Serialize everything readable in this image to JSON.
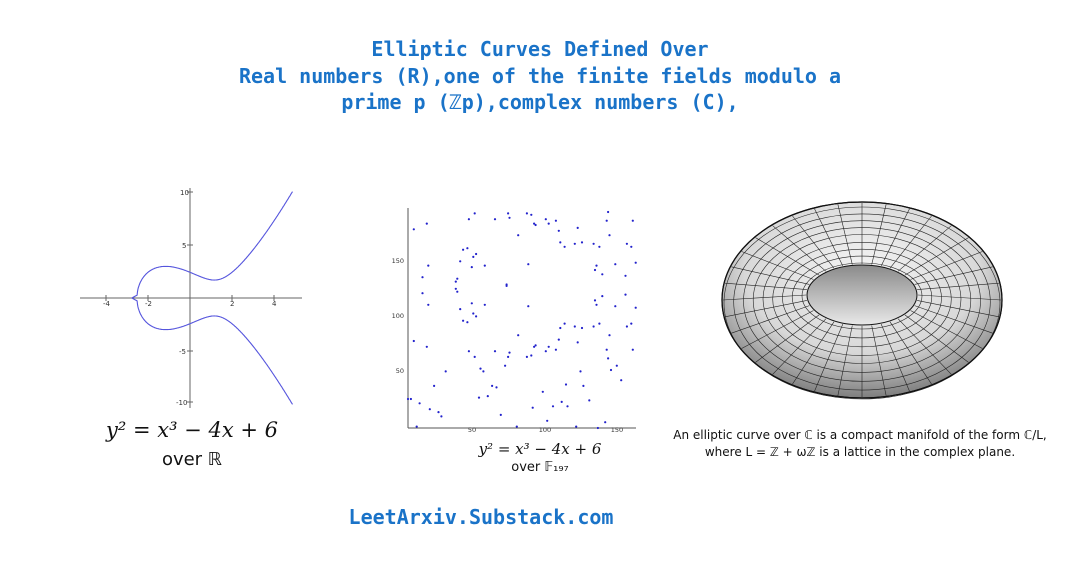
{
  "header": {
    "line1": "Elliptic Curves Defined Over",
    "line2": "Real numbers (R),one of the finite fields modulo a",
    "line3": "prime p (ℤp),complex numbers (C),"
  },
  "real_panel": {
    "equation": "y² = x³ − 4x + 6",
    "field": "over ℝ",
    "x_ticks": [
      "-4",
      "-2",
      "2",
      "4"
    ],
    "y_ticks": [
      "10",
      "5",
      "-5",
      "-10"
    ],
    "curve_color": "#5555dd"
  },
  "finite_panel": {
    "equation": "y² = x³ − 4x + 6",
    "field": "over 𝔽₁₉₇",
    "x_ticks": [
      "50",
      "100",
      "150"
    ],
    "y_ticks": [
      "150",
      "100",
      "50"
    ],
    "point_color": "#2222cc"
  },
  "complex_panel": {
    "caption_line1": "An elliptic curve over ℂ is a compact manifold of the form ℂ/L,",
    "caption_line2": "where L = ℤ + ωℤ is a lattice in the complex plane."
  },
  "footer": {
    "site": "LeetArxiv.Substack.com"
  },
  "colors": {
    "accent": "#1a73c8"
  }
}
